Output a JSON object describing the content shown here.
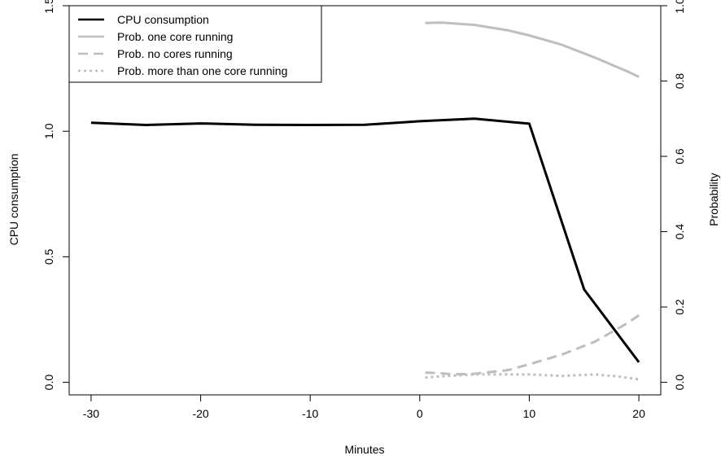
{
  "chart_data": {
    "type": "line",
    "xlabel": "Minutes",
    "ylabel_left": "CPU consumption",
    "ylabel_right": "Probability",
    "xlim": [
      -32,
      22
    ],
    "ylim_left": [
      -0.05,
      1.5
    ],
    "ylim_right": [
      -0.0333,
      1.0
    ],
    "x_ticks": [
      -30,
      -20,
      -10,
      0,
      10,
      20
    ],
    "y_ticks_left": [
      0.0,
      0.5,
      1.0,
      1.5
    ],
    "y_ticks_right": [
      0.0,
      0.2,
      0.4,
      0.6,
      0.8,
      1.0
    ],
    "x_tick_labels": [
      "-30",
      "-20",
      "-10",
      "0",
      "10",
      "20"
    ],
    "y_tick_labels_left": [
      "0.0",
      "0.5",
      "1.0",
      "1.5"
    ],
    "y_tick_labels_right": [
      "0.0",
      "0.2",
      "0.4",
      "0.6",
      "0.8",
      "1.0"
    ],
    "legend_position": "top-left",
    "grid": false,
    "series": [
      {
        "name": "CPU consumption",
        "axis": "left",
        "color": "#000000",
        "dash": "solid",
        "x": [
          -30,
          -25,
          -20,
          -15,
          -10,
          -5,
          0,
          5,
          10,
          15,
          20
        ],
        "y": [
          1.034,
          1.025,
          1.031,
          1.026,
          1.025,
          1.026,
          1.04,
          1.05,
          1.03,
          0.37,
          0.08
        ]
      },
      {
        "name": "Prob. one core running",
        "axis": "right",
        "color": "#bebebe",
        "dash": "solid",
        "x": [
          0.5,
          2,
          5,
          8,
          10,
          13,
          16,
          19,
          20
        ],
        "y": [
          0.954,
          0.955,
          0.949,
          0.935,
          0.921,
          0.896,
          0.862,
          0.825,
          0.811
        ]
      },
      {
        "name": "Prob. no cores running",
        "axis": "right",
        "color": "#bebebe",
        "dash": "dashed",
        "x": [
          0.5,
          2,
          3,
          5,
          8,
          10,
          13,
          16,
          19,
          20
        ],
        "y": [
          0.026,
          0.024,
          0.021,
          0.023,
          0.032,
          0.048,
          0.074,
          0.108,
          0.158,
          0.178
        ]
      },
      {
        "name": "Prob. more than one core running",
        "axis": "right",
        "color": "#bebebe",
        "dash": "dotted",
        "x": [
          0.5,
          2,
          5,
          8,
          10,
          13,
          16,
          18,
          20
        ],
        "y": [
          0.013,
          0.016,
          0.021,
          0.021,
          0.021,
          0.017,
          0.021,
          0.016,
          0.008
        ]
      }
    ]
  }
}
